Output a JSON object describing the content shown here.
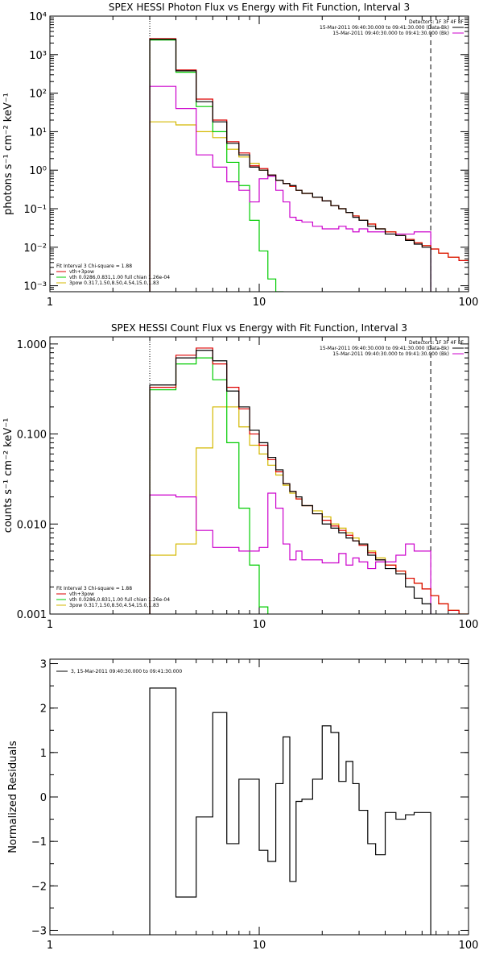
{
  "chart_data": [
    {
      "type": "line",
      "title": "SPEX HESSI Photon Flux vs Energy with Fit Function, Interval 3",
      "ylabel": "photons s⁻¹ cm⁻² keV⁻¹",
      "xlabel": "",
      "xscale": "log",
      "yscale": "log",
      "xlim": [
        1,
        100
      ],
      "ylim": [
        0.0007,
        10000
      ],
      "x_ticks": [
        1,
        10,
        100
      ],
      "x_ticklabels": [
        "1",
        "10",
        "100"
      ],
      "y_ticks": [
        0.001,
        0.01,
        0.1,
        1,
        10,
        100,
        1000,
        10000
      ],
      "y_ticklabels": [
        "10⁻³",
        "10⁻²",
        "10⁻¹",
        "10⁰",
        "10¹",
        "10²",
        "10³",
        "10⁴"
      ],
      "legend_top": [
        "Detectors: 1F 3F 4F 8F",
        "15-Mar-2011 09:40:30.000 to 09:41:30.000 (Data-Bk)",
        "15-Mar-2011 09:40:30.000 to 09:41:30.000 (Bk)"
      ],
      "legend_bottom": [
        "Fit Interval 3   Chi-square = 1.88",
        "vth+3pow",
        "vth 0.0286,0.831,1.00  full chian 1.26e-04",
        "3pow 0.317,1.50,8.50,4.54,15.0,1.83"
      ],
      "vlines": [
        3.0,
        66.0
      ],
      "edges": [
        3,
        4,
        5,
        6,
        7,
        8,
        9,
        10,
        11,
        12,
        13,
        14,
        15,
        16,
        18,
        20,
        22,
        24,
        26,
        28,
        30,
        33,
        36,
        40,
        45,
        50,
        55,
        60,
        66,
        72,
        80,
        90,
        100
      ],
      "series": [
        {
          "name": "15-Mar-2011 09:40:30.000 to 09:41:30.000 (Data-Bk)",
          "color": "#000000",
          "values": [
            2500,
            380,
            60,
            18,
            5,
            2.5,
            1.2,
            1.0,
            0.75,
            0.55,
            0.45,
            0.4,
            0.3,
            0.25,
            0.2,
            0.16,
            0.12,
            0.1,
            0.08,
            0.06,
            0.05,
            0.035,
            0.03,
            0.022,
            0.02,
            0.015,
            0.012,
            0.01
          ]
        },
        {
          "name": "vth+3pow",
          "color": "#dd0000",
          "values": [
            2600,
            400,
            70,
            20,
            5.5,
            2.8,
            1.3,
            1.1,
            0.75,
            0.55,
            0.45,
            0.38,
            0.3,
            0.25,
            0.2,
            0.16,
            0.12,
            0.1,
            0.08,
            0.065,
            0.05,
            0.04,
            0.03,
            0.025,
            0.02,
            0.016,
            0.013,
            0.011,
            0.009,
            0.007,
            0.0055,
            0.0045
          ]
        },
        {
          "name": "vth",
          "color": "#00cc00",
          "values": [
            2400,
            350,
            45,
            10,
            1.6,
            0.4,
            0.05,
            0.008,
            0.0015,
            0.0007
          ]
        },
        {
          "name": "3pow",
          "color": "#d4b800",
          "values": [
            18,
            15,
            10,
            7,
            3.5,
            2.2,
            1.5,
            1.0,
            0.75,
            0.55,
            0.45,
            0.38,
            0.3,
            0.25,
            0.2,
            0.16,
            0.12,
            0.1,
            0.08,
            0.065,
            0.05,
            0.04,
            0.03,
            0.025,
            0.02,
            0.016,
            0.013,
            0.011,
            0.009,
            0.007,
            0.0055,
            0.0045
          ]
        },
        {
          "name": "15-Mar-2011 09:40:30.000 to 09:41:30.000 (Bk)",
          "color": "#cc00cc",
          "values": [
            150,
            40,
            2.5,
            1.2,
            0.5,
            0.3,
            0.15,
            0.6,
            0.7,
            0.3,
            0.15,
            0.06,
            0.05,
            0.045,
            0.035,
            0.03,
            0.03,
            0.035,
            0.03,
            0.025,
            0.03,
            0.025,
            0.025,
            0.022,
            0.022,
            0.022,
            0.025,
            0.025
          ]
        }
      ]
    },
    {
      "type": "line",
      "title": "SPEX HESSI Count Flux vs Energy with Fit Function, Interval 3",
      "ylabel": "counts s⁻¹ cm⁻² keV⁻¹",
      "xlabel": "",
      "xscale": "log",
      "yscale": "log",
      "xlim": [
        1,
        100
      ],
      "ylim": [
        0.001,
        1.2
      ],
      "x_ticks": [
        1,
        10,
        100
      ],
      "x_ticklabels": [
        "1",
        "10",
        "100"
      ],
      "y_ticks": [
        0.001,
        0.01,
        0.1,
        1
      ],
      "y_ticklabels": [
        "0.001",
        "0.010",
        "0.100",
        "1.000"
      ],
      "legend_top": [
        "Detectors: 1F 3F 4F 8F",
        "15-Mar-2011 09:40:30.000 to 09:41:30.000 (Data-Bk)",
        "15-Mar-2011 09:40:30.000 to 09:41:30.000 (Bk)"
      ],
      "legend_bottom": [
        "Fit Interval 3   Chi-square = 1.88",
        "vth+3pow",
        "vth 0.0286,0.831,1.00  full chian 1.26e-04",
        "3pow 0.317,1.50,8.50,4.54,15.0,1.83"
      ],
      "vlines": [
        3.0,
        66.0
      ],
      "edges": [
        3,
        4,
        5,
        6,
        7,
        8,
        9,
        10,
        11,
        12,
        13,
        14,
        15,
        16,
        18,
        20,
        22,
        24,
        26,
        28,
        30,
        33,
        36,
        40,
        45,
        50,
        55,
        60,
        66,
        72,
        80,
        90,
        100
      ],
      "series": [
        {
          "name": "15-Mar-2011 09:40:30.000 to 09:41:30.000 (Data-Bk)",
          "color": "#000000",
          "values": [
            0.35,
            0.7,
            0.85,
            0.65,
            0.3,
            0.2,
            0.11,
            0.08,
            0.055,
            0.04,
            0.028,
            0.023,
            0.02,
            0.016,
            0.013,
            0.01,
            0.009,
            0.008,
            0.007,
            0.0065,
            0.006,
            0.0045,
            0.004,
            0.0032,
            0.0028,
            0.002,
            0.0015,
            0.0013
          ]
        },
        {
          "name": "vth+3pow",
          "color": "#dd0000",
          "values": [
            0.33,
            0.75,
            0.9,
            0.6,
            0.33,
            0.19,
            0.1,
            0.075,
            0.052,
            0.038,
            0.028,
            0.023,
            0.019,
            0.016,
            0.013,
            0.011,
            0.0095,
            0.0085,
            0.0075,
            0.0065,
            0.0058,
            0.0048,
            0.004,
            0.0035,
            0.003,
            0.0025,
            0.0022,
            0.0019,
            0.0016,
            0.0013,
            0.0011,
            0.001
          ]
        },
        {
          "name": "vth",
          "color": "#00cc00",
          "values": [
            0.31,
            0.6,
            0.7,
            0.4,
            0.08,
            0.015,
            0.0035,
            0.0012
          ]
        },
        {
          "name": "3pow",
          "color": "#d4b800",
          "values": [
            0.0045,
            0.006,
            0.07,
            0.2,
            0.2,
            0.12,
            0.075,
            0.06,
            0.045,
            0.035,
            0.027,
            0.022,
            0.019,
            0.016,
            0.014,
            0.012,
            0.01,
            0.009,
            0.008,
            0.007,
            0.006,
            0.005,
            0.0042,
            0.0035,
            0.003,
            0.0025,
            0.0022,
            0.0019,
            0.0016,
            0.0013,
            0.0011,
            0.001
          ]
        },
        {
          "name": "15-Mar-2011 09:40:30.000 to 09:41:30.000 (Bk)",
          "color": "#cc00cc",
          "values": [
            0.021,
            0.02,
            0.0085,
            0.0055,
            0.0055,
            0.005,
            0.005,
            0.0055,
            0.022,
            0.015,
            0.006,
            0.004,
            0.005,
            0.004,
            0.004,
            0.0037,
            0.0037,
            0.0047,
            0.0035,
            0.0042,
            0.0038,
            0.0032,
            0.0038,
            0.0038,
            0.0045,
            0.006,
            0.005,
            0.005
          ]
        }
      ]
    },
    {
      "type": "line",
      "title": "",
      "ylabel": "Normalized Residuals",
      "xlabel": "",
      "xscale": "log",
      "yscale": "linear",
      "xlim": [
        1,
        100
      ],
      "ylim": [
        -3.1,
        3.1
      ],
      "x_ticks": [
        1,
        10,
        100
      ],
      "x_ticklabels": [
        "1",
        "10",
        "100"
      ],
      "y_ticks": [
        -3,
        -2,
        -1,
        0,
        1,
        2,
        3
      ],
      "y_ticklabels": [
        "−3",
        "−2",
        "−1",
        "0",
        "1",
        "2",
        "3"
      ],
      "legend_top": [
        "3, 15-Mar-2011 09:40:30.000 to 09:41:30.000"
      ],
      "legend_bottom": [],
      "vlines": [],
      "edges": [
        3,
        4,
        5,
        6,
        7,
        8,
        9,
        10,
        11,
        12,
        13,
        14,
        15,
        16,
        18,
        20,
        22,
        24,
        26,
        28,
        30,
        33,
        36,
        40,
        45,
        50,
        55,
        60,
        66
      ],
      "series": [
        {
          "name": "3, 15-Mar-2011 09:40:30.000 to 09:41:30.000",
          "color": "#000000",
          "values": [
            2.45,
            -2.25,
            -0.45,
            1.9,
            -1.05,
            0.4,
            0.4,
            -1.2,
            -1.45,
            0.3,
            1.35,
            -1.9,
            -0.1,
            -0.05,
            0.4,
            1.6,
            1.45,
            0.35,
            0.8,
            0.3,
            -0.3,
            -1.05,
            -1.3,
            -0.35,
            -0.5,
            -0.4,
            -0.35,
            -0.35
          ]
        }
      ]
    }
  ]
}
